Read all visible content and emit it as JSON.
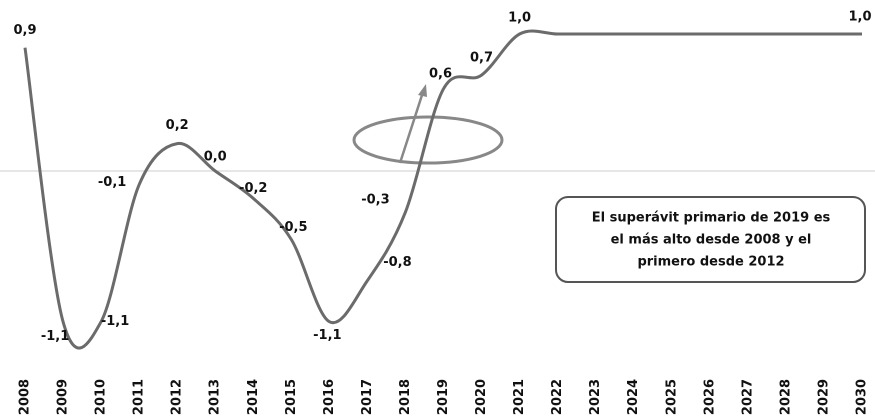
{
  "chart_data": {
    "type": "line",
    "categories": [
      "2008",
      "2009",
      "2010",
      "2011",
      "2012",
      "2013",
      "2014",
      "2015",
      "2016",
      "2017",
      "2018",
      "2019",
      "2020",
      "2021",
      "2022",
      "2023",
      "2024",
      "2025",
      "2026",
      "2027",
      "2028",
      "2029",
      "2030"
    ],
    "series": [
      {
        "color": "#6b6b6b",
        "values": [
          0.9,
          -1.1,
          -1.1,
          -0.1,
          0.2,
          0.0,
          -0.2,
          -0.5,
          -1.1,
          -0.8,
          -0.3,
          0.6,
          0.7,
          1.0,
          1.0,
          1.0,
          1.0,
          1.0,
          1.0,
          1.0,
          1.0,
          1.0,
          1.0
        ],
        "value_labels": [
          "0,9",
          "-1,1",
          "-1,1",
          "-0,1",
          "0,2",
          "0,0",
          "-0,2",
          "-0,5",
          "-1,1",
          "-0,8",
          "-0,3",
          "0,6",
          "0,7",
          "1,0",
          null,
          null,
          null,
          null,
          null,
          null,
          null,
          null,
          "1,0"
        ]
      }
    ],
    "annotation": [
      "El superávit primario de 2019 es",
      "el más alto desde 2008 y el",
      "primero desde 2012"
    ]
  }
}
